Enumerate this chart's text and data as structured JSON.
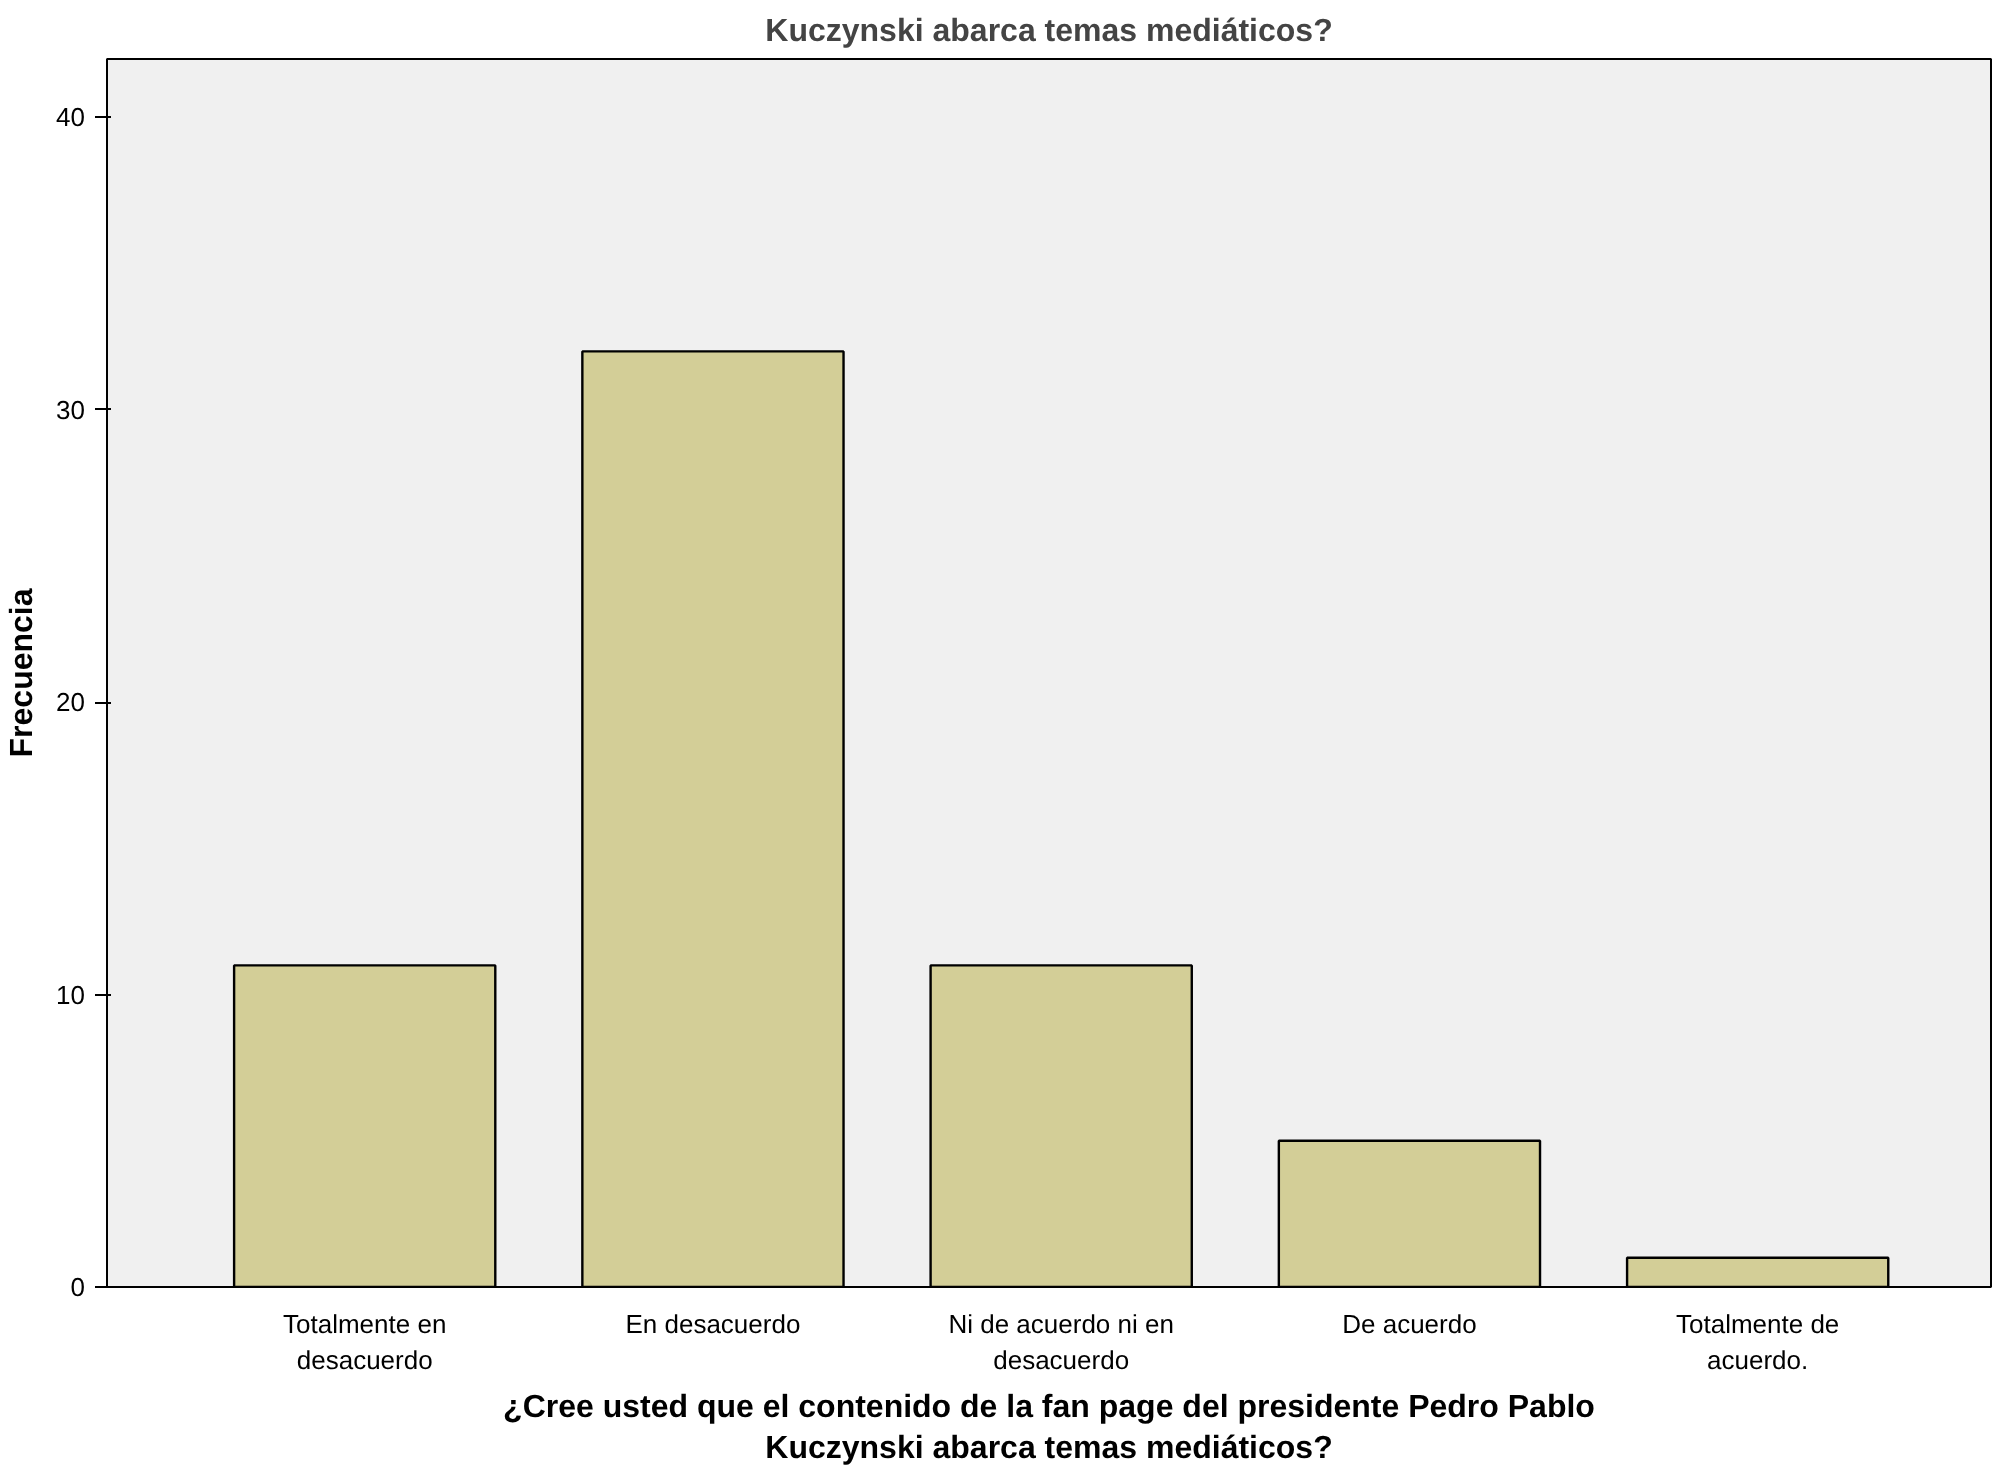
{
  "chart_data": {
    "type": "bar",
    "title": "Kuczynski abarca temas mediáticos?",
    "xlabel": "¿Cree usted que el contenido de la fan page del presidente Pedro Pablo Kuczynski abarca temas mediáticos?",
    "ylabel": "Frecuencia",
    "categories": [
      "Totalmente en desacuerdo",
      "En desacuerdo",
      "Ni de acuerdo ni en desacuerdo",
      "De acuerdo",
      "Totalmente de acuerdo."
    ],
    "values": [
      11,
      32,
      11,
      5,
      1
    ],
    "color": "#d3ce97",
    "ylim": [
      0,
      42
    ],
    "yticks": [
      0,
      10,
      20,
      30,
      40
    ],
    "grid": false
  }
}
